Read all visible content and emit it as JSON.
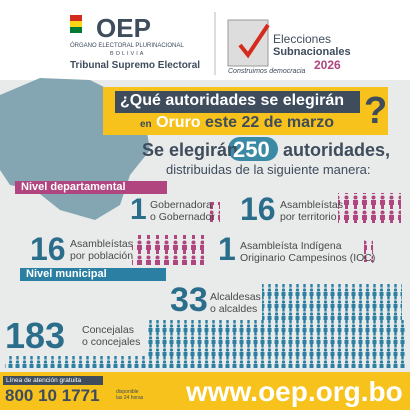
{
  "header": {
    "logo": "OEP",
    "org": "ÓRGANO ELECTORAL PLURINACIONAL",
    "country": "BOLIVIA",
    "tribunal": "Tribunal Supremo Electoral",
    "event_line1": "Elecciones",
    "event_line2": "Subnacionales",
    "event_year": "2026",
    "slogan": "Construimos democracia"
  },
  "title": {
    "line1": "¿Qué autoridades se elegirán",
    "line2_prefix": "en",
    "place": "Oruro",
    "line2_suffix": "este 22 de marzo",
    "question_mark": "?"
  },
  "summary": {
    "prefix": "Se elegirán",
    "total": 250,
    "suffix": "autoridades,",
    "subtitle": "distribuidas de la siguiente manera:"
  },
  "sections": [
    {
      "title": "Nivel departamental",
      "items": [
        {
          "count": 1,
          "label": [
            "Gobernadora",
            "o Gobernador"
          ]
        },
        {
          "count": 16,
          "label": [
            "Asambleístas",
            "por territorio"
          ]
        },
        {
          "count": 16,
          "label": [
            "Asambleístas",
            "por población"
          ]
        },
        {
          "count": 1,
          "label": [
            "Asambleísta Indígena",
            "Originario Campesinos (IOC)"
          ]
        }
      ]
    },
    {
      "title": "Nivel municipal",
      "items": [
        {
          "count": 33,
          "label": [
            "Alcaldesas",
            "o alcaldes"
          ]
        },
        {
          "count": 183,
          "label": [
            "Concejalas",
            "o concejales"
          ]
        }
      ]
    }
  ],
  "footer": {
    "hotline_label": "Línea de atención gratuita",
    "phone": "800 10 1771",
    "availability": [
      "disponible",
      "las 24 horas"
    ],
    "website": "www.oep.org.bo"
  }
}
